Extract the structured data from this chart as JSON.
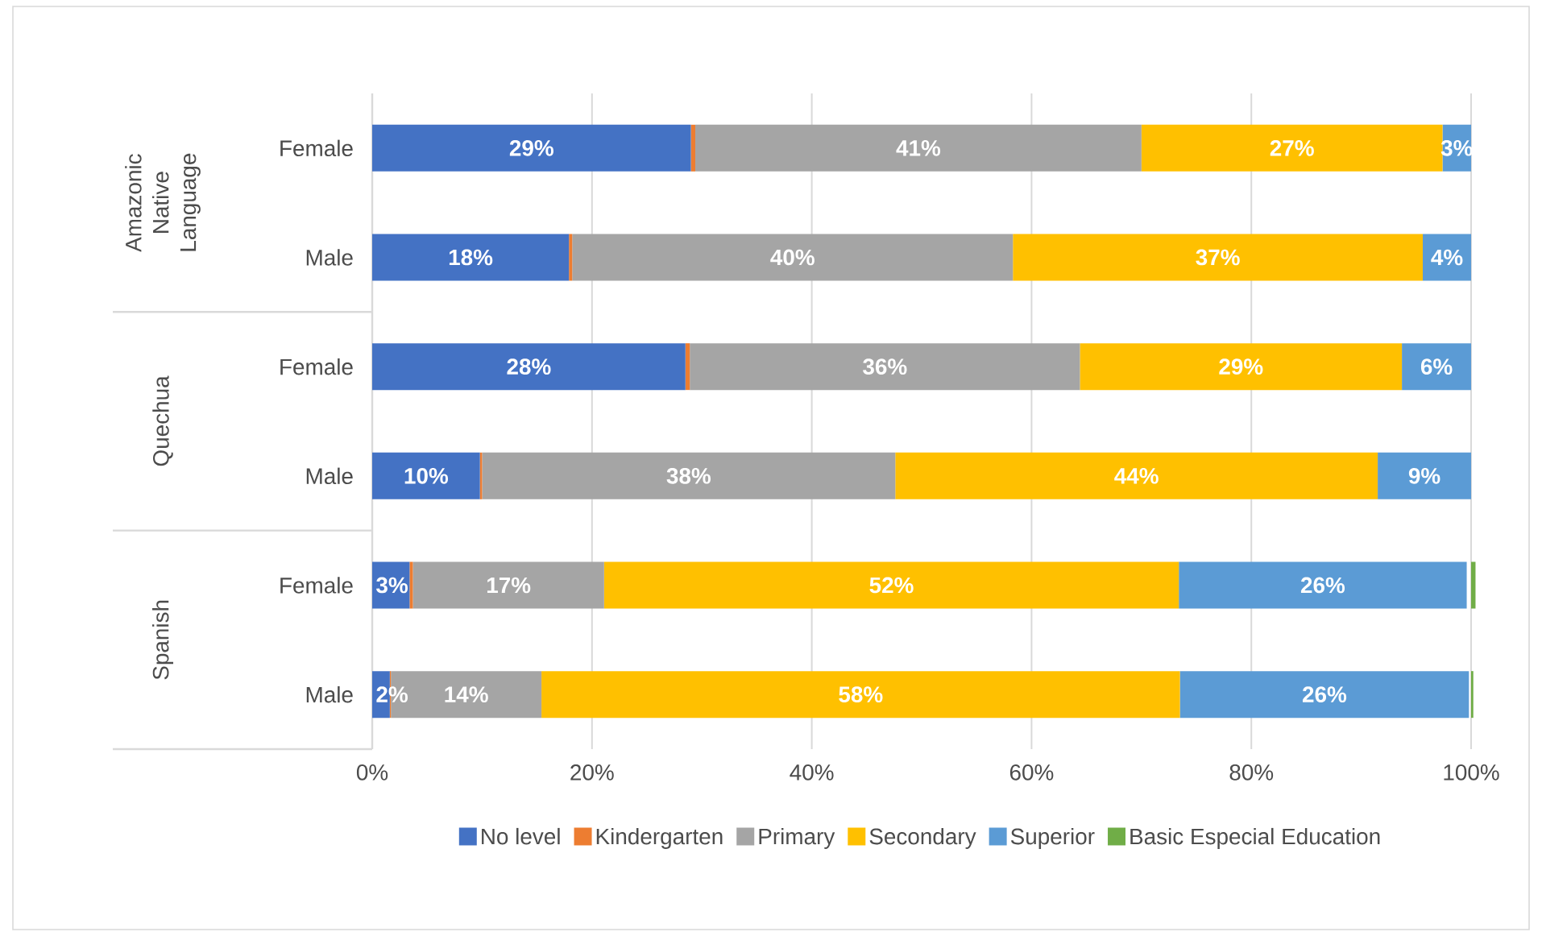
{
  "chart_data": {
    "type": "bar",
    "orientation": "horizontal",
    "stacked": true,
    "categories": [
      "Female",
      "Male",
      "Female",
      "Male",
      "Female",
      "Male"
    ],
    "annotations": [
      "Amazonic Native Language",
      "Quechua",
      "Spanish"
    ],
    "xlim": [
      0,
      100
    ],
    "xticks": [
      {
        "value": 0,
        "label": "0%"
      },
      {
        "value": 20,
        "label": "20%"
      },
      {
        "value": 40,
        "label": "40%"
      },
      {
        "value": 60,
        "label": "60%"
      },
      {
        "value": 80,
        "label": "80%"
      },
      {
        "value": 100,
        "label": "100%"
      }
    ],
    "grid": "x",
    "legend": "bottom",
    "series": [
      {
        "name": "No level",
        "color": "#4472c4",
        "values": [
          29.0,
          17.9,
          28.5,
          9.8,
          3.4,
          1.6
        ],
        "value_labels": [
          "29%",
          "18%",
          "28%",
          "10%",
          "3%",
          "2%"
        ]
      },
      {
        "name": "Kindergarten",
        "color": "#ed7d31",
        "values": [
          0.4,
          0.3,
          0.4,
          0.2,
          0.3,
          0.1
        ]
      },
      {
        "name": "Primary",
        "color": "#a5a5a5",
        "values": [
          40.6,
          40.1,
          35.5,
          37.6,
          17.4,
          13.7
        ],
        "value_labels": [
          "41%",
          "40%",
          "36%",
          "38%",
          "17%",
          "14%"
        ]
      },
      {
        "name": "Secondary",
        "color": "#ffc000",
        "values": [
          27.4,
          37.3,
          29.3,
          43.9,
          52.3,
          58.1
        ],
        "value_labels": [
          "27%",
          "37%",
          "29%",
          "44%",
          "52%",
          "58%"
        ]
      },
      {
        "name": "Superior",
        "color": "#5b9bd5",
        "values": [
          2.6,
          4.4,
          6.3,
          8.5,
          26.2,
          26.3
        ],
        "value_labels": [
          "3%",
          "4%",
          "6%",
          "9%",
          "26%",
          "26%"
        ]
      },
      {
        "name": "Basic Especial Education",
        "color": "#70ad47",
        "values": [
          null,
          null,
          null,
          null,
          0.4,
          0.2
        ]
      }
    ]
  }
}
